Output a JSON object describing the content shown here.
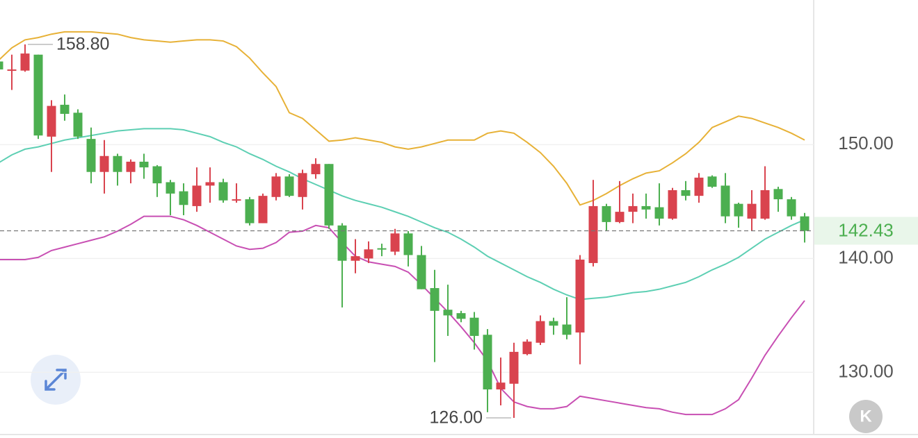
{
  "chart_data": {
    "type": "candlestick",
    "up_color": "#d9434e",
    "down_color": "#4caf50",
    "open": [
      157.3,
      156.5,
      156.5,
      157.9,
      150.7,
      153.5,
      152.8,
      150.5,
      147.6,
      149.0,
      147.6,
      148.5,
      148.1,
      146.7,
      145.9,
      144.6,
      146.4,
      146.7,
      145.1,
      145.2,
      143.1,
      145.4,
      147.2,
      145.4,
      147.4,
      148.3,
      142.9,
      139.8,
      140.0,
      140.9,
      140.6,
      142.2,
      140.3,
      137.4,
      135.5,
      135.2,
      134.8,
      133.3,
      128.5,
      129.0,
      131.6,
      132.6,
      134.5,
      134.2,
      133.5,
      139.6,
      144.6,
      143.2,
      144.1,
      144.6,
      144.5,
      143.5,
      146.0,
      145.5,
      147.2,
      146.4,
      144.8,
      143.5,
      143.5,
      146.1,
      145.2,
      143.7
    ],
    "high": [
      157.5,
      157.9,
      158.8,
      157.9,
      153.9,
      154.4,
      153.1,
      151.5,
      150.4,
      149.2,
      148.7,
      149.2,
      148.2,
      146.9,
      146.6,
      148.0,
      148.0,
      147.0,
      146.6,
      145.4,
      145.7,
      147.5,
      147.4,
      147.8,
      148.8,
      148.3,
      143.1,
      141.7,
      141.5,
      141.3,
      142.6,
      142.4,
      141.1,
      139.0,
      137.7,
      135.4,
      135.3,
      133.8,
      131.3,
      132.6,
      132.9,
      135.0,
      134.8,
      136.6,
      140.3,
      146.9,
      144.8,
      146.8,
      145.7,
      145.7,
      146.6,
      146.2,
      146.8,
      147.5,
      147.3,
      147.5,
      144.9,
      146.0,
      148.1,
      146.3,
      145.4,
      144.0
    ],
    "low": [
      156.3,
      154.8,
      156.4,
      150.5,
      147.6,
      152.1,
      150.5,
      146.6,
      145.7,
      146.4,
      146.6,
      147.0,
      145.4,
      143.8,
      143.8,
      144.1,
      144.9,
      144.9,
      144.9,
      142.9,
      143.1,
      145.1,
      145.4,
      144.3,
      147.0,
      142.6,
      135.7,
      138.7,
      139.6,
      140.2,
      140.3,
      139.3,
      137.3,
      130.9,
      133.2,
      134.4,
      132.0,
      126.5,
      127.1,
      126.0,
      131.5,
      132.4,
      133.3,
      132.9,
      130.7,
      139.3,
      142.4,
      143.1,
      143.1,
      143.5,
      142.9,
      143.4,
      145.1,
      144.9,
      146.2,
      143.1,
      142.7,
      142.4,
      143.4,
      144.1,
      143.4,
      141.4
    ],
    "close": [
      156.6,
      156.6,
      158.0,
      150.8,
      153.4,
      152.7,
      150.7,
      147.6,
      149.0,
      147.6,
      148.5,
      148.0,
      146.6,
      145.7,
      144.7,
      146.4,
      146.7,
      145.1,
      145.2,
      143.1,
      145.5,
      147.2,
      145.5,
      147.5,
      148.3,
      142.9,
      139.8,
      140.2,
      140.8,
      140.8,
      142.2,
      140.3,
      137.3,
      135.4,
      135.0,
      134.7,
      133.2,
      128.5,
      129.1,
      131.8,
      132.7,
      134.5,
      134.1,
      133.3,
      139.9,
      144.6,
      143.2,
      144.1,
      144.6,
      144.3,
      143.5,
      146.0,
      145.5,
      147.1,
      146.3,
      143.7,
      143.7,
      144.8,
      146.0,
      145.2,
      143.7,
      142.43
    ],
    "bands": [
      {
        "color": "#e7b136",
        "values": [
          157.4,
          158.5,
          159.2,
          159.4,
          159.7,
          159.9,
          159.9,
          159.9,
          159.8,
          159.7,
          159.4,
          159.2,
          159.1,
          159.0,
          159.1,
          159.2,
          159.2,
          159.1,
          158.6,
          157.6,
          156.3,
          155.1,
          152.8,
          152.3,
          151.3,
          150.3,
          150.4,
          150.6,
          150.4,
          150.2,
          149.8,
          149.6,
          149.8,
          150.1,
          150.4,
          150.4,
          150.4,
          151.0,
          151.2,
          151.0,
          150.2,
          149.3,
          148.1,
          146.6,
          144.7,
          145.1,
          145.7,
          146.4,
          147.0,
          147.5,
          147.7,
          148.4,
          149.2,
          150.2,
          151.5,
          152.0,
          152.5,
          152.3,
          151.9,
          151.5,
          151.0,
          150.4
        ]
      },
      {
        "color": "#5dcfb3",
        "values": [
          148.4,
          149.1,
          149.6,
          149.8,
          150.1,
          150.4,
          150.6,
          150.8,
          151.0,
          151.2,
          151.3,
          151.4,
          151.4,
          151.4,
          151.3,
          151.0,
          150.7,
          150.2,
          149.8,
          149.2,
          148.7,
          148.1,
          147.6,
          147.0,
          146.5,
          146.0,
          145.5,
          145.1,
          144.8,
          144.5,
          144.1,
          143.7,
          143.2,
          142.7,
          142.3,
          141.7,
          141.0,
          140.2,
          139.6,
          139.0,
          138.4,
          137.9,
          137.3,
          136.8,
          136.4,
          136.5,
          136.6,
          136.8,
          137.0,
          137.1,
          137.3,
          137.6,
          137.9,
          138.4,
          139.0,
          139.5,
          140.1,
          140.9,
          141.7,
          142.3,
          142.9,
          143.4
        ]
      },
      {
        "color": "#c84fb3",
        "values": [
          139.9,
          139.9,
          139.9,
          140.1,
          140.7,
          141.0,
          141.3,
          141.6,
          141.9,
          142.4,
          143.0,
          143.7,
          143.7,
          143.7,
          143.4,
          142.9,
          142.3,
          141.7,
          141.1,
          140.8,
          140.9,
          141.4,
          142.3,
          142.4,
          142.9,
          142.7,
          141.4,
          140.2,
          139.7,
          139.5,
          139.3,
          138.8,
          137.7,
          136.5,
          135.3,
          134.0,
          132.6,
          131.0,
          128.6,
          127.4,
          127.0,
          126.8,
          126.8,
          127.0,
          127.9,
          127.7,
          127.5,
          127.3,
          127.1,
          126.9,
          126.8,
          126.5,
          126.3,
          126.3,
          126.3,
          126.8,
          127.6,
          129.5,
          131.5,
          133.2,
          134.8,
          136.3
        ]
      }
    ],
    "ylim": [
      124.6,
      162.7
    ],
    "yticks": [
      {
        "value": 130,
        "label": "130.00"
      },
      {
        "value": 140,
        "label": "140.00"
      },
      {
        "value": 150,
        "label": "150.00"
      }
    ],
    "grid": true,
    "last_price": 142.43,
    "last_price_color": "#4caf50",
    "annotations": [
      {
        "value": 158.8,
        "label": "158.80"
      },
      {
        "value": 126.0,
        "label": "126.00"
      }
    ],
    "badge": "K"
  }
}
